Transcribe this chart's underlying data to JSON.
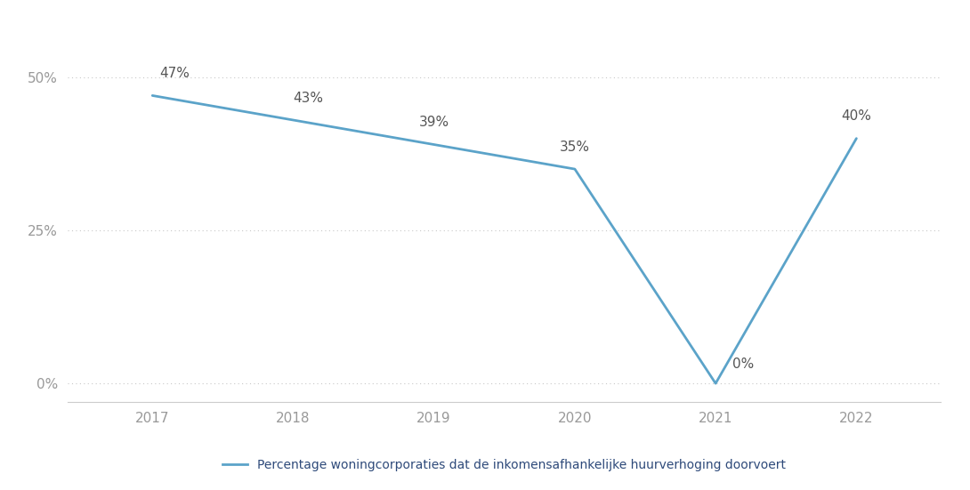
{
  "years": [
    2017,
    2018,
    2019,
    2020,
    2021,
    2022
  ],
  "values": [
    47,
    43,
    39,
    35,
    0,
    40
  ],
  "labels": [
    "47%",
    "43%",
    "39%",
    "35%",
    "0%",
    "40%"
  ],
  "line_color": "#5ba3c9",
  "background_color": "#ffffff",
  "yticks": [
    0,
    25,
    50
  ],
  "ytick_labels": [
    "0%",
    "25%",
    "50%"
  ],
  "ylim": [
    -3,
    57
  ],
  "xlim": [
    2016.4,
    2022.6
  ],
  "legend_label": "Percentage woningcorporaties dat de inkomensafhankelijke huurverhoging doorvoert",
  "legend_color": "#2e4a7a",
  "grid_color": "#c8c8c8",
  "tick_color": "#999999",
  "spine_color": "#cccccc",
  "label_fontsize": 11,
  "tick_fontsize": 11,
  "legend_fontsize": 10,
  "label_color": "#555555"
}
